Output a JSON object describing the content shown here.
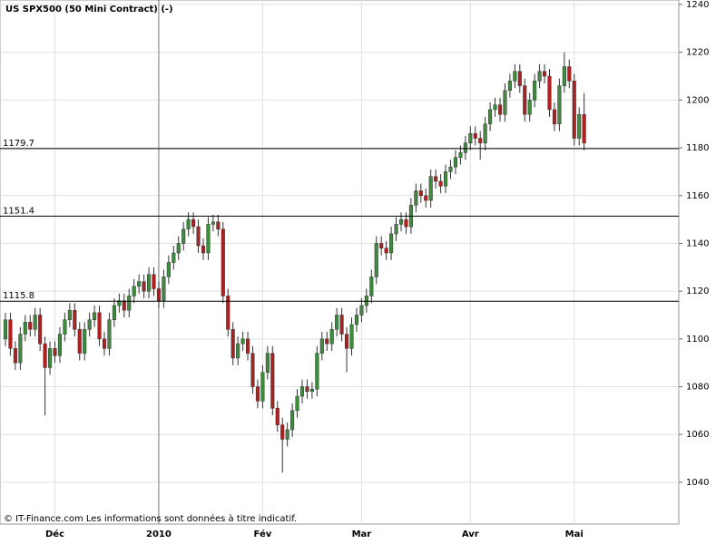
{
  "chart_data": {
    "type": "candlestick",
    "title": "US SPX500 (50 Mini Contract) (-)",
    "footer": "© IT-Finance.com Les informations sont données à titre indicatif.",
    "categories": [
      null,
      null,
      null,
      null,
      null,
      null,
      null,
      null,
      null,
      null,
      "Déc",
      null,
      null,
      null,
      null,
      null,
      null,
      null,
      null,
      null,
      null,
      null,
      null,
      null,
      null,
      null,
      null,
      null,
      null,
      null,
      null,
      "2010",
      null,
      null,
      null,
      null,
      null,
      null,
      null,
      null,
      null,
      null,
      null,
      null,
      null,
      null,
      null,
      null,
      null,
      null,
      null,
      null,
      "Fév",
      null,
      null,
      null,
      null,
      null,
      null,
      null,
      null,
      null,
      null,
      null,
      null,
      null,
      null,
      null,
      null,
      null,
      null,
      null,
      "Mar",
      null,
      null,
      null,
      null,
      null,
      null,
      null,
      null,
      null,
      null,
      null,
      null,
      null,
      null,
      null,
      null,
      null,
      null,
      null,
      null,
      null,
      "Avr",
      null,
      null,
      null,
      null,
      null,
      null,
      null,
      null,
      null,
      null,
      null,
      null,
      null,
      null,
      null,
      null,
      null,
      null,
      null,
      null,
      "Mai",
      null,
      null
    ],
    "open": [
      1100,
      1108,
      1096,
      1090,
      1102,
      1107,
      1104,
      1110,
      1098,
      1088,
      1096,
      1093,
      1102,
      1108,
      1112,
      1104,
      1094,
      1104,
      1108,
      1111,
      1100,
      1096,
      1108,
      1114,
      1116,
      1112,
      1118,
      1122,
      1124,
      1120,
      1127,
      1121,
      1116,
      1126,
      1132,
      1136,
      1140,
      1146,
      1150,
      1147,
      1139,
      1136,
      1148,
      1149,
      1146,
      1118,
      1104,
      1092,
      1098,
      1100,
      1094,
      1080,
      1074,
      1086,
      1094,
      1071,
      1064,
      1058,
      1062,
      1070,
      1076,
      1080,
      1078,
      1079,
      1094,
      1100,
      1098,
      1104,
      1110,
      1102,
      1096,
      1106,
      1110,
      1114,
      1118,
      1126,
      1140,
      1138,
      1136,
      1144,
      1148,
      1150,
      1147,
      1156,
      1162,
      1160,
      1158,
      1168,
      1166,
      1164,
      1170,
      1172,
      1176,
      1178,
      1182,
      1186,
      1184,
      1182,
      1190,
      1196,
      1198,
      1194,
      1204,
      1208,
      1212,
      1206,
      1194,
      1200,
      1208,
      1212,
      1210,
      1196,
      1190,
      1206,
      1214,
      1208,
      1184,
      1194
    ],
    "high": [
      1111,
      1111,
      1099,
      1105,
      1110,
      1110,
      1113,
      1113,
      1101,
      1099,
      1099,
      1105,
      1111,
      1115,
      1115,
      1107,
      1107,
      1111,
      1114,
      1114,
      1103,
      1111,
      1117,
      1119,
      1119,
      1121,
      1125,
      1127,
      1127,
      1130,
      1130,
      1124,
      1129,
      1135,
      1139,
      1143,
      1149,
      1153,
      1153,
      1150,
      1142,
      1151,
      1152,
      1152,
      1149,
      1121,
      1107,
      1101,
      1103,
      1103,
      1097,
      1083,
      1089,
      1097,
      1097,
      1074,
      1067,
      1065,
      1073,
      1079,
      1083,
      1083,
      1082,
      1097,
      1103,
      1103,
      1107,
      1113,
      1113,
      1105,
      1109,
      1113,
      1117,
      1121,
      1129,
      1143,
      1143,
      1141,
      1147,
      1151,
      1153,
      1153,
      1159,
      1165,
      1165,
      1163,
      1171,
      1171,
      1169,
      1173,
      1175,
      1179,
      1181,
      1185,
      1189,
      1189,
      1187,
      1193,
      1199,
      1201,
      1201,
      1207,
      1211,
      1215,
      1215,
      1209,
      1203,
      1211,
      1215,
      1215,
      1213,
      1199,
      1209,
      1220,
      1217,
      1211,
      1197,
      1203
    ],
    "low": [
      1097,
      1093,
      1087,
      1087,
      1099,
      1101,
      1101,
      1095,
      1068,
      1085,
      1090,
      1090,
      1099,
      1105,
      1101,
      1091,
      1091,
      1101,
      1105,
      1097,
      1093,
      1093,
      1105,
      1111,
      1109,
      1109,
      1115,
      1119,
      1117,
      1117,
      1118,
      1113,
      1113,
      1123,
      1129,
      1133,
      1137,
      1143,
      1144,
      1136,
      1133,
      1133,
      1145,
      1143,
      1115,
      1101,
      1089,
      1089,
      1095,
      1091,
      1077,
      1071,
      1071,
      1083,
      1068,
      1061,
      1044,
      1055,
      1059,
      1067,
      1073,
      1075,
      1075,
      1076,
      1091,
      1095,
      1095,
      1101,
      1099,
      1086,
      1093,
      1103,
      1107,
      1111,
      1115,
      1123,
      1135,
      1133,
      1133,
      1141,
      1145,
      1144,
      1144,
      1153,
      1157,
      1155,
      1155,
      1163,
      1161,
      1161,
      1167,
      1169,
      1173,
      1175,
      1179,
      1181,
      1175,
      1179,
      1187,
      1193,
      1191,
      1191,
      1201,
      1205,
      1203,
      1191,
      1191,
      1197,
      1205,
      1207,
      1193,
      1187,
      1187,
      1203,
      1205,
      1181,
      1181,
      1179
    ],
    "close": [
      1108,
      1096,
      1090,
      1102,
      1107,
      1104,
      1110,
      1098,
      1088,
      1096,
      1093,
      1102,
      1108,
      1112,
      1104,
      1094,
      1104,
      1108,
      1111,
      1100,
      1096,
      1108,
      1114,
      1116,
      1112,
      1118,
      1122,
      1124,
      1120,
      1127,
      1121,
      1116,
      1126,
      1132,
      1136,
      1140,
      1146,
      1150,
      1147,
      1139,
      1136,
      1148,
      1149,
      1146,
      1118,
      1104,
      1092,
      1098,
      1100,
      1094,
      1080,
      1074,
      1086,
      1094,
      1071,
      1064,
      1058,
      1062,
      1070,
      1076,
      1080,
      1078,
      1079,
      1094,
      1100,
      1098,
      1104,
      1110,
      1102,
      1096,
      1106,
      1110,
      1114,
      1118,
      1126,
      1140,
      1138,
      1136,
      1144,
      1148,
      1150,
      1147,
      1156,
      1162,
      1160,
      1158,
      1168,
      1166,
      1164,
      1170,
      1172,
      1176,
      1178,
      1182,
      1186,
      1184,
      1182,
      1190,
      1196,
      1198,
      1194,
      1204,
      1208,
      1212,
      1206,
      1194,
      1200,
      1208,
      1212,
      1210,
      1196,
      1190,
      1206,
      1214,
      1208,
      1184,
      1194,
      1182
    ],
    "up_color": "#3d8b3d",
    "down_color": "#b02020",
    "levels": [
      1179.7,
      1151.4,
      1115.8
    ],
    "ylim": [
      1022.5,
      1241.9
    ],
    "yticks": [
      1040,
      1060,
      1080,
      1100,
      1120,
      1140,
      1160,
      1180,
      1200,
      1220,
      1240
    ],
    "grid": true
  }
}
